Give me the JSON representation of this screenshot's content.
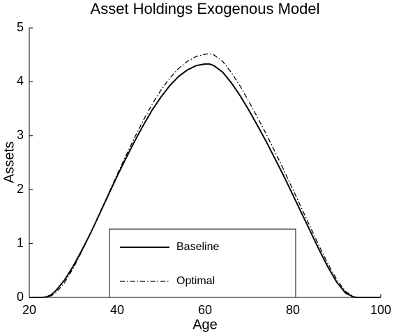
{
  "chart_data": {
    "type": "line",
    "title": "Asset Holdings Exogenous Model",
    "x_label": "Age",
    "y_label": "Assets",
    "x": [
      20,
      22,
      23,
      24,
      25,
      26,
      28,
      30,
      32,
      34,
      36,
      38,
      40,
      42,
      44,
      46,
      48,
      50,
      52,
      54,
      56,
      58,
      60,
      61,
      62,
      64,
      66,
      68,
      70,
      72,
      74,
      76,
      78,
      80,
      82,
      84,
      86,
      88,
      90,
      92,
      94,
      96,
      98,
      100
    ],
    "series": [
      {
        "name": "Baseline",
        "color": "#000000",
        "dash": "solid",
        "values": [
          0,
          0,
          0,
          0.01,
          0.05,
          0.12,
          0.32,
          0.58,
          0.88,
          1.2,
          1.55,
          1.9,
          2.25,
          2.58,
          2.9,
          3.2,
          3.48,
          3.72,
          3.93,
          4.1,
          4.22,
          4.3,
          4.33,
          4.33,
          4.3,
          4.18,
          3.98,
          3.74,
          3.47,
          3.18,
          2.88,
          2.56,
          2.24,
          1.9,
          1.56,
          1.22,
          0.88,
          0.56,
          0.28,
          0.08,
          0,
          0,
          0,
          0
        ]
      },
      {
        "name": "Optimal",
        "color": "#000000",
        "dash": "dashdot",
        "values": [
          0,
          0,
          0,
          0,
          0.03,
          0.08,
          0.27,
          0.54,
          0.86,
          1.2,
          1.56,
          1.92,
          2.28,
          2.63,
          2.97,
          3.29,
          3.59,
          3.85,
          4.07,
          4.25,
          4.38,
          4.47,
          4.51,
          4.52,
          4.5,
          4.38,
          4.17,
          3.92,
          3.63,
          3.33,
          3.02,
          2.69,
          2.35,
          2.0,
          1.65,
          1.3,
          0.95,
          0.62,
          0.33,
          0.11,
          0.01,
          0,
          0,
          0
        ]
      }
    ],
    "xlim": [
      20,
      100
    ],
    "xticks": [
      20,
      40,
      60,
      80,
      100
    ],
    "ylim": [
      0,
      5
    ],
    "yticks": [
      0,
      1,
      2,
      3,
      4,
      5
    ],
    "grid": false,
    "legend": "bottom"
  }
}
